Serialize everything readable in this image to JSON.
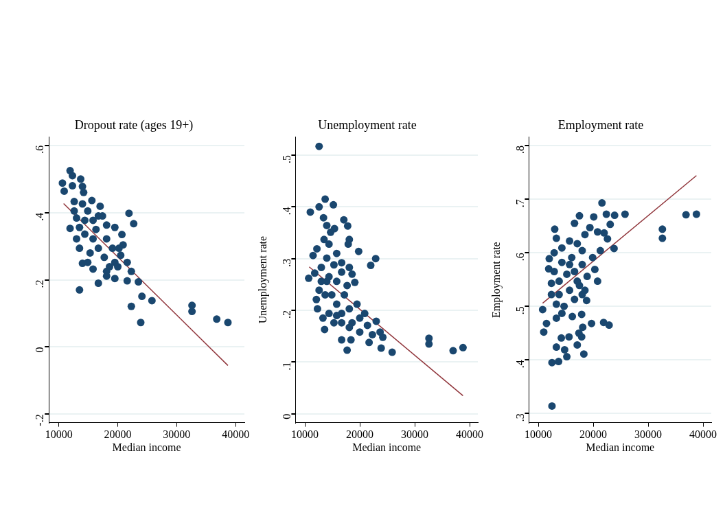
{
  "chart_data": [
    {
      "type": "scatter",
      "title": "Dropout rate (ages 19+)",
      "xlabel": "Median income",
      "marker": "circle",
      "grid": "y",
      "legend": false,
      "xlim": [
        8300,
        41500
      ],
      "xticks": [
        10000,
        20000,
        30000,
        40000
      ],
      "ylim": [
        -0.225,
        0.625
      ],
      "yticks": [
        {
          "value": -0.2,
          "label": "-.2"
        },
        0,
        {
          "value": 0.2,
          "label": ".2"
        },
        {
          "value": 0.4,
          "label": ".4"
        },
        {
          "value": 0.6,
          "label": ".6"
        }
      ],
      "series": [
        {
          "color": "#1a476f",
          "x": [
            11900,
            10600,
            10900,
            12300,
            13700,
            12300,
            14000,
            14200,
            15600,
            11900,
            21900,
            22700,
            13500,
            16700,
            14000,
            19500,
            21600,
            23500,
            24100,
            25800,
            22300,
            23900,
            32600,
            32600,
            36800,
            38700,
            12600,
            13000,
            14000,
            14900,
            15800,
            16700,
            17400,
            18100,
            19500,
            20700,
            20900,
            20500,
            19500,
            18100,
            15800,
            14900,
            13500,
            13000,
            14400,
            15800,
            16700,
            17700,
            18600,
            15300,
            16300,
            18100,
            19100,
            20000,
            21600,
            22300,
            17000,
            13500,
            14400,
            12600,
            18100,
            20200
          ],
          "values": [
            0.525,
            0.488,
            0.464,
            0.51,
            0.5,
            0.48,
            0.478,
            0.46,
            0.436,
            0.353,
            0.398,
            0.367,
            0.17,
            0.19,
            0.249,
            0.204,
            0.197,
            0.194,
            0.151,
            0.138,
            0.121,
            0.073,
            0.124,
            0.106,
            0.083,
            0.073,
            0.405,
            0.384,
            0.426,
            0.405,
            0.377,
            0.39,
            0.39,
            0.363,
            0.356,
            0.335,
            0.304,
            0.273,
            0.252,
            0.225,
            0.232,
            0.252,
            0.294,
            0.322,
            0.336,
            0.322,
            0.294,
            0.267,
            0.239,
            0.28,
            0.35,
            0.322,
            0.294,
            0.239,
            0.252,
            0.225,
            0.419,
            0.356,
            0.377,
            0.433,
            0.211,
            0.294
          ]
        },
        {
          "type": "line",
          "marker": "none",
          "color": "#90353b",
          "x": [
            10800,
            38700
          ],
          "values": [
            0.427,
            -0.055
          ]
        }
      ]
    },
    {
      "type": "scatter",
      "title": "Unemployment rate",
      "xlabel": "Median income",
      "ylabel": "Unemployment rate",
      "marker": "circle",
      "grid": "y",
      "legend": false,
      "xlim": [
        8300,
        41500
      ],
      "xticks": [
        10000,
        20000,
        30000,
        40000
      ],
      "ylim": [
        -0.017,
        0.535
      ],
      "yticks": [
        0,
        {
          "value": 0.1,
          "label": ".1"
        },
        {
          "value": 0.2,
          "label": ".2"
        },
        {
          "value": 0.3,
          "label": ".3"
        },
        {
          "value": 0.4,
          "label": ".4"
        },
        {
          "value": 0.5,
          "label": ".5"
        }
      ],
      "series": [
        {
          "color": "#1a476f",
          "x": [
            12600,
            13700,
            15200,
            12600,
            11000,
            13400,
            17100,
            17800,
            14000,
            15400,
            14700,
            18100,
            17900,
            19800,
            22900,
            22000,
            11500,
            12200,
            10700,
            11800,
            19100,
            13600,
            16700,
            18400,
            17700,
            21700,
            23900,
            24200,
            25900,
            23000,
            32600,
            32600,
            37000,
            38800,
            13500,
            14400,
            15800,
            14000,
            13000,
            15300,
            16700,
            16700,
            18100,
            18600,
            15800,
            14000,
            12600,
            12100,
            12300,
            13300,
            14400,
            15300,
            15800,
            17200,
            17700,
            14900,
            14400,
            16700,
            18100,
            19500,
            18600,
            20000,
            20900,
            21400,
            22300,
            23700,
            20000,
            18100,
            16700,
            13700,
            15800,
            13000
          ],
          "values": [
            0.517,
            0.415,
            0.404,
            0.4,
            0.39,
            0.379,
            0.375,
            0.363,
            0.364,
            0.358,
            0.351,
            0.337,
            0.328,
            0.314,
            0.3,
            0.287,
            0.306,
            0.319,
            0.262,
            0.272,
            0.254,
            0.163,
            0.143,
            0.143,
            0.123,
            0.138,
            0.127,
            0.148,
            0.119,
            0.179,
            0.146,
            0.135,
            0.122,
            0.128,
            0.337,
            0.328,
            0.31,
            0.301,
            0.283,
            0.288,
            0.292,
            0.274,
            0.283,
            0.27,
            0.256,
            0.256,
            0.239,
            0.221,
            0.203,
            0.185,
            0.194,
            0.176,
            0.212,
            0.23,
            0.248,
            0.23,
            0.265,
            0.194,
            0.203,
            0.212,
            0.176,
            0.185,
            0.194,
            0.171,
            0.153,
            0.158,
            0.158,
            0.167,
            0.176,
            0.23,
            0.19,
            0.256
          ]
        },
        {
          "type": "line",
          "marker": "none",
          "color": "#90353b",
          "x": [
            10800,
            38800
          ],
          "values": [
            0.284,
            0.035
          ]
        }
      ]
    },
    {
      "type": "scatter",
      "title": "Employment rate",
      "xlabel": "Median income",
      "ylabel": "Employment rate",
      "marker": "circle",
      "grid": "y",
      "legend": false,
      "xlim": [
        8300,
        41500
      ],
      "xticks": [
        10000,
        20000,
        30000,
        40000
      ],
      "ylim": [
        0.283,
        0.816
      ],
      "yticks": [
        {
          "value": 0.3,
          "label": ".3"
        },
        {
          "value": 0.4,
          "label": ".4"
        },
        {
          "value": 0.5,
          "label": ".5"
        },
        {
          "value": 0.6,
          "label": ".6"
        },
        {
          "value": 0.7,
          "label": ".7"
        },
        {
          "value": 0.8,
          "label": ".8"
        }
      ],
      "series": [
        {
          "color": "#1a476f",
          "x": [
            12500,
            12500,
            13700,
            15200,
            18300,
            13300,
            14800,
            17100,
            17900,
            15600,
            14200,
            11000,
            11500,
            17400,
            18100,
            19700,
            21900,
            22900,
            10800,
            16200,
            17900,
            20800,
            18800,
            23800,
            23100,
            22600,
            21600,
            22400,
            23900,
            25800,
            32600,
            32600,
            36900,
            38800,
            17500,
            16600,
            20100,
            13000,
            13300,
            11900,
            12000,
            20300,
            22000,
            12900,
            14300,
            15700,
            17100,
            18500,
            19400,
            20800,
            21300,
            19900,
            18000,
            16100,
            14300,
            12900,
            12400,
            13800,
            15200,
            16600,
            18000,
            18900,
            17500,
            15700,
            13800,
            12400,
            13300,
            14700,
            16600,
            18000,
            14300,
            13300,
            15700,
            17100,
            18500
          ],
          "values": [
            0.314,
            0.395,
            0.397,
            0.406,
            0.411,
            0.424,
            0.419,
            0.428,
            0.443,
            0.443,
            0.441,
            0.452,
            0.468,
            0.45,
            0.461,
            0.468,
            0.47,
            0.465,
            0.494,
            0.481,
            0.485,
            0.547,
            0.511,
            0.608,
            0.653,
            0.626,
            0.693,
            0.672,
            0.67,
            0.672,
            0.644,
            0.627,
            0.671,
            0.672,
            0.669,
            0.655,
            0.667,
            0.644,
            0.627,
            0.57,
            0.589,
            0.569,
            0.637,
            0.6,
            0.609,
            0.622,
            0.617,
            0.634,
            0.647,
            0.639,
            0.604,
            0.591,
            0.604,
            0.591,
            0.582,
            0.565,
            0.543,
            0.547,
            0.56,
            0.565,
            0.578,
            0.556,
            0.539,
            0.53,
            0.522,
            0.522,
            0.504,
            0.5,
            0.513,
            0.522,
            0.487,
            0.478,
            0.578,
            0.547,
            0.53
          ]
        },
        {
          "type": "line",
          "marker": "none",
          "color": "#90353b",
          "x": [
            10800,
            38800
          ],
          "values": [
            0.506,
            0.744
          ]
        }
      ]
    }
  ]
}
